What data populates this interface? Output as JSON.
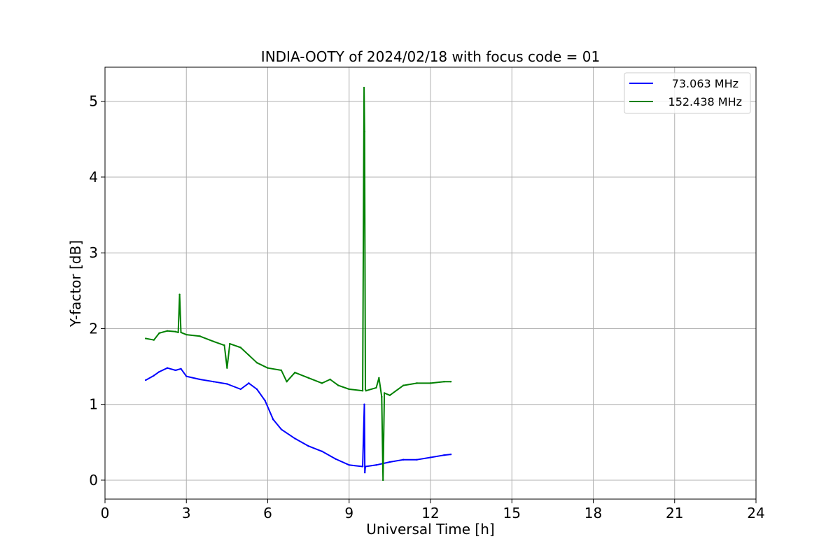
{
  "chart_data": {
    "type": "line",
    "title": "INDIA-OOTY of 2024/02/18 with focus code = 01",
    "xlabel": "Universal Time [h]",
    "ylabel": "Y-factor [dB]",
    "xlim": [
      0,
      24
    ],
    "ylim": [
      -0.25,
      5.45
    ],
    "xticks": [
      0,
      3,
      6,
      9,
      12,
      15,
      18,
      21,
      24
    ],
    "xtick_labels": [
      "0",
      "3",
      "6",
      "9",
      "12",
      "15",
      "18",
      "21",
      "24"
    ],
    "yticks": [
      0,
      1,
      2,
      3,
      4,
      5
    ],
    "ytick_labels": [
      "0",
      "1",
      "2",
      "3",
      "4",
      "5"
    ],
    "grid": true,
    "legend_position": "top-right",
    "series": [
      {
        "name": "73.063 MHz",
        "color": "#0000ff",
        "x": [
          1.5,
          1.8,
          2.0,
          2.3,
          2.6,
          2.8,
          3.0,
          3.5,
          4.0,
          4.5,
          5.0,
          5.3,
          5.6,
          5.9,
          6.2,
          6.5,
          7.0,
          7.5,
          8.0,
          8.5,
          9.0,
          9.5,
          9.56,
          9.58,
          9.6,
          10.0,
          10.5,
          11.0,
          11.5,
          12.0,
          12.5,
          12.75
        ],
        "y": [
          1.32,
          1.38,
          1.43,
          1.48,
          1.45,
          1.47,
          1.37,
          1.33,
          1.3,
          1.27,
          1.2,
          1.28,
          1.2,
          1.05,
          0.8,
          0.67,
          0.55,
          0.45,
          0.38,
          0.28,
          0.2,
          0.18,
          1.0,
          0.1,
          0.18,
          0.2,
          0.24,
          0.27,
          0.27,
          0.3,
          0.33,
          0.34
        ]
      },
      {
        "name": "152.438 MHz",
        "color": "#008000",
        "x": [
          1.5,
          1.8,
          2.0,
          2.3,
          2.6,
          2.7,
          2.75,
          2.8,
          3.0,
          3.5,
          4.0,
          4.4,
          4.5,
          4.6,
          5.0,
          5.3,
          5.6,
          6.0,
          6.5,
          6.7,
          7.0,
          7.5,
          8.0,
          8.3,
          8.6,
          9.0,
          9.5,
          9.55,
          9.57,
          9.6,
          9.62,
          10.0,
          10.1,
          10.2,
          10.25,
          10.3,
          10.5,
          11.0,
          11.5,
          12.0,
          12.5,
          12.75
        ],
        "y": [
          1.87,
          1.85,
          1.94,
          1.97,
          1.96,
          1.95,
          2.45,
          1.95,
          1.92,
          1.9,
          1.83,
          1.78,
          1.48,
          1.8,
          1.75,
          1.65,
          1.55,
          1.48,
          1.45,
          1.3,
          1.42,
          1.35,
          1.28,
          1.33,
          1.25,
          1.2,
          1.18,
          5.18,
          4.6,
          1.2,
          1.18,
          1.22,
          1.35,
          1.1,
          0.0,
          1.15,
          1.12,
          1.25,
          1.28,
          1.28,
          1.3,
          1.3
        ]
      }
    ]
  }
}
